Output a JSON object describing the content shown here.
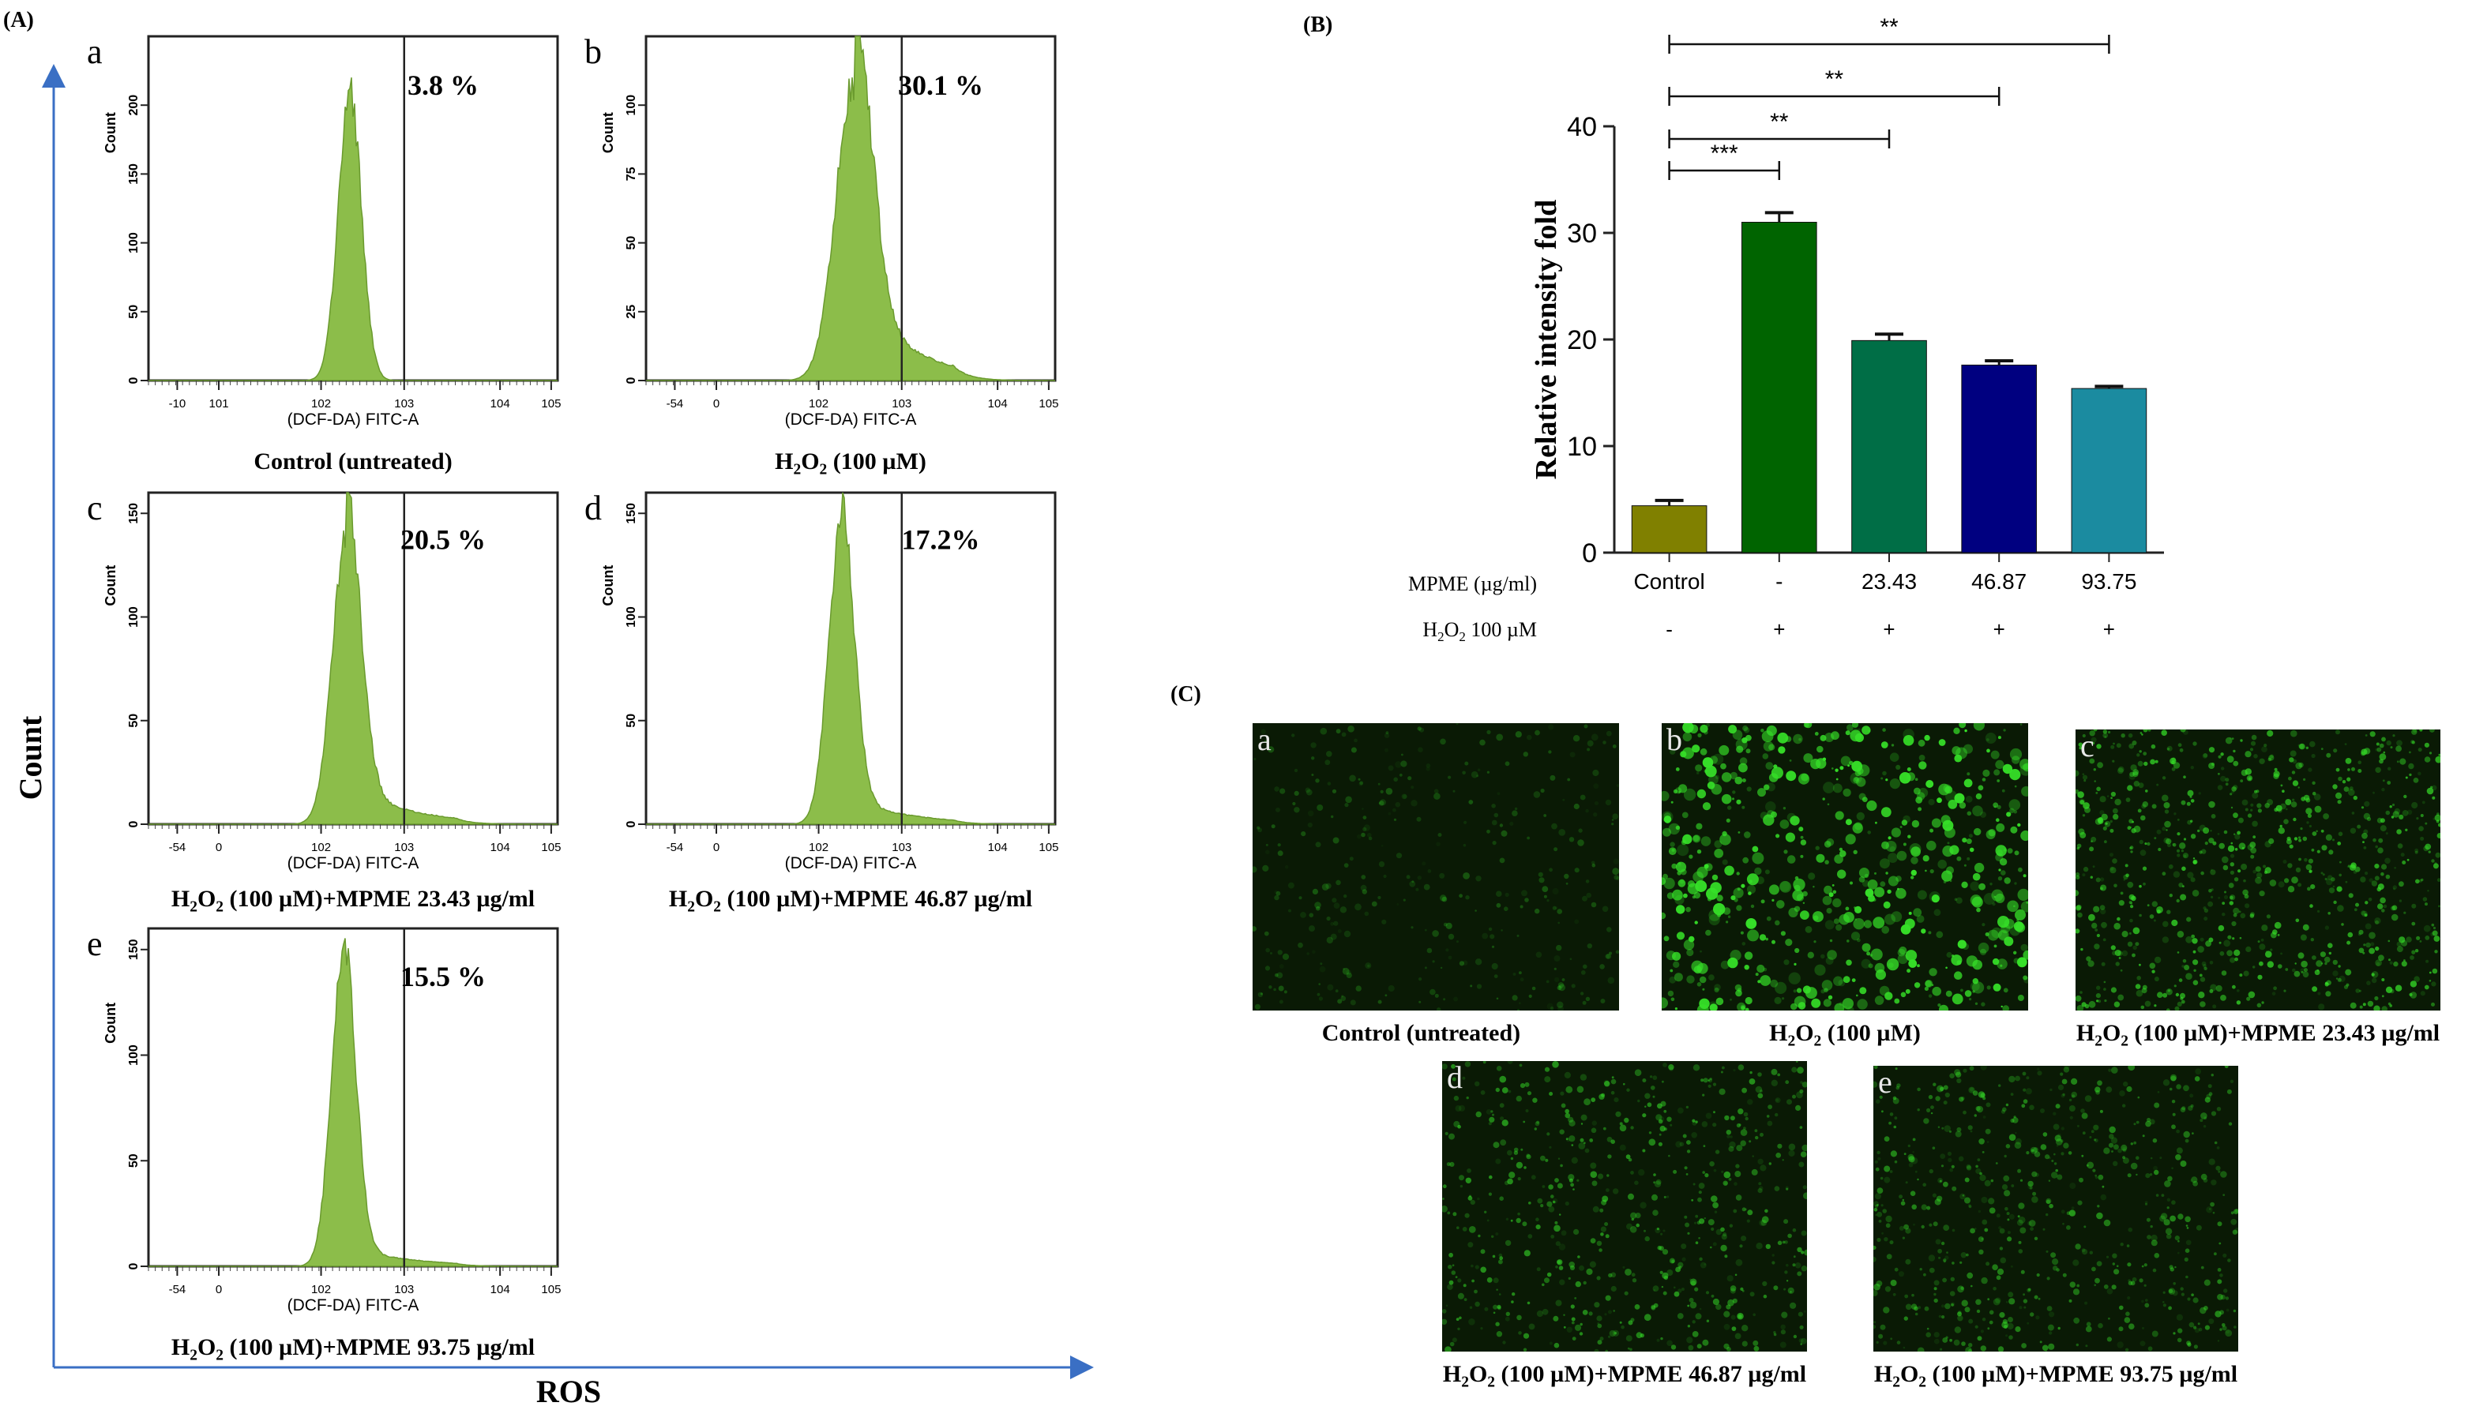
{
  "panel_labels": {
    "A": "(A)",
    "B": "(B)",
    "C": "(C)"
  },
  "axis_labels": {
    "count": "Count",
    "ros": "ROS"
  },
  "histograms": [
    {
      "id": "a",
      "letter": "a",
      "percent": "3.8 %",
      "caption": "Control (untreated)",
      "xlabel": "(DCF-DA) FITC-A",
      "ylabel": "Count",
      "yticks": [
        "0",
        "50",
        "100",
        "150",
        "200"
      ],
      "ymax": 250,
      "xticks": [
        "-10",
        "101",
        "102",
        "103",
        "104",
        "105"
      ],
      "peak_log": 2.15,
      "peak_height": 0.84,
      "spread": 0.18,
      "tail": 0.0
    },
    {
      "id": "b",
      "letter": "b",
      "percent": "30.1 %",
      "caption_prefix": "H",
      "caption_sub": "2",
      "caption_mid": "O",
      "caption_sub2": "2",
      "caption_suffix": " (100 µM)",
      "xlabel": "(DCF-DA) FITC-A",
      "ylabel": "Count",
      "yticks": [
        "0",
        "25",
        "50",
        "75",
        "100"
      ],
      "ymax": 125,
      "xticks": [
        "-54",
        "0",
        "102",
        "103",
        "104",
        "105"
      ],
      "peak_log": 2.25,
      "peak_height": 0.86,
      "spread": 0.28,
      "tail": 0.28
    },
    {
      "id": "c",
      "letter": "c",
      "percent": "20.5 %",
      "caption_prefix": "H",
      "caption_sub": "2",
      "caption_mid": "O",
      "caption_sub2": "2",
      "caption_suffix": " (100 µM)+MPME  23.43 µg/ml",
      "xlabel": "(DCF-DA) FITC-A",
      "ylabel": "Count",
      "yticks": [
        "0",
        "50",
        "100",
        "150"
      ],
      "ymax": 160,
      "xticks": [
        "-54",
        "0",
        "102",
        "103",
        "104",
        "105"
      ],
      "peak_log": 2.1,
      "peak_height": 0.87,
      "spread": 0.22,
      "tail": 0.14
    },
    {
      "id": "d",
      "letter": "d",
      "percent": "17.2%",
      "caption_prefix": "H",
      "caption_sub": "2",
      "caption_mid": "O",
      "caption_sub2": "2",
      "caption_suffix": " (100 µM)+MPME  46.87 µg/ml",
      "xlabel": "(DCF-DA) FITC-A",
      "ylabel": "Count",
      "yticks": [
        "0",
        "50",
        "100",
        "150"
      ],
      "ymax": 160,
      "xticks": [
        "-54",
        "0",
        "102",
        "103",
        "104",
        "105"
      ],
      "peak_log": 2.05,
      "peak_height": 0.88,
      "spread": 0.2,
      "tail": 0.1
    },
    {
      "id": "e",
      "letter": "e",
      "percent": "15.5 %",
      "caption_prefix": "H",
      "caption_sub": "2",
      "caption_mid": "O",
      "caption_sub2": "2",
      "caption_suffix": " (100 µM)+MPME  93.75 µg/ml",
      "xlabel": "(DCF-DA) FITC-A",
      "ylabel": "Count",
      "yticks": [
        "0",
        "50",
        "100",
        "150"
      ],
      "ymax": 160,
      "xticks": [
        "-54",
        "0",
        "102",
        "103",
        "104",
        "105"
      ],
      "peak_log": 2.05,
      "peak_height": 0.9,
      "spread": 0.19,
      "tail": 0.07
    }
  ],
  "chart_data": {
    "type": "bar",
    "title": "",
    "ylabel": "Relative intensity fold",
    "xlabel": "",
    "ylim": [
      0,
      40
    ],
    "yticks": [
      "0",
      "10",
      "20",
      "30",
      "40"
    ],
    "categories": [
      "Control",
      "-",
      "23.43",
      "46.87",
      "93.75"
    ],
    "values": [
      4.4,
      31.0,
      19.9,
      17.6,
      15.4
    ],
    "errors": [
      0.5,
      0.9,
      0.6,
      0.4,
      0.2
    ],
    "colors": [
      "#808000",
      "#006400",
      "#006e46",
      "#000080",
      "#1b8ba0"
    ],
    "row_labels": {
      "mpme": "MPME (µg/ml)",
      "h2o2_prefix": "H",
      "h2o2_sub": "2",
      "h2o2_mid": "O",
      "h2o2_sub2": "2",
      "h2o2_suffix": " 100 µM"
    },
    "h2o2_signs": [
      "-",
      "+",
      "+",
      "+",
      "+"
    ],
    "significance": [
      {
        "from": 0,
        "to": 1,
        "label": "***"
      },
      {
        "from": 0,
        "to": 2,
        "label": "**"
      },
      {
        "from": 0,
        "to": 3,
        "label": "**"
      },
      {
        "from": 0,
        "to": 4,
        "label": "**"
      }
    ]
  },
  "microscopy": [
    {
      "id": "a",
      "letter": "a",
      "caption": "Control (untreated)",
      "density": 0.12,
      "brightness": 0.3
    },
    {
      "id": "b",
      "letter": "b",
      "caption_prefix": "H",
      "caption_sub": "2",
      "caption_mid": "O",
      "caption_sub2": "2",
      "caption_suffix": " (100 µM)",
      "density": 0.9,
      "brightness": 1.0
    },
    {
      "id": "c",
      "letter": "c",
      "caption_prefix": "H",
      "caption_sub": "2",
      "caption_mid": "O",
      "caption_sub2": "2",
      "caption_suffix": " (100 µM)+MPME  23.43 µg/ml",
      "density": 0.7,
      "brightness": 0.75
    },
    {
      "id": "d",
      "letter": "d",
      "caption_prefix": "H",
      "caption_sub": "2",
      "caption_mid": "O",
      "caption_sub2": "2",
      "caption_suffix": " (100 µM)+MPME  46.87 µg/ml",
      "density": 0.45,
      "brightness": 0.6
    },
    {
      "id": "e",
      "letter": "e",
      "caption_prefix": "H",
      "caption_sub": "2",
      "caption_mid": "O",
      "caption_sub2": "2",
      "caption_suffix": " (100 µM)+MPME  93.75 µg/ml",
      "density": 0.5,
      "brightness": 0.55
    }
  ],
  "colors": {
    "histogram_fill": "#8cbd4a",
    "histogram_stroke": "#6a9a2e",
    "arrow": "#3a6fc4",
    "micro_bg": "#0a1a05",
    "micro_cell": "#36e028"
  }
}
